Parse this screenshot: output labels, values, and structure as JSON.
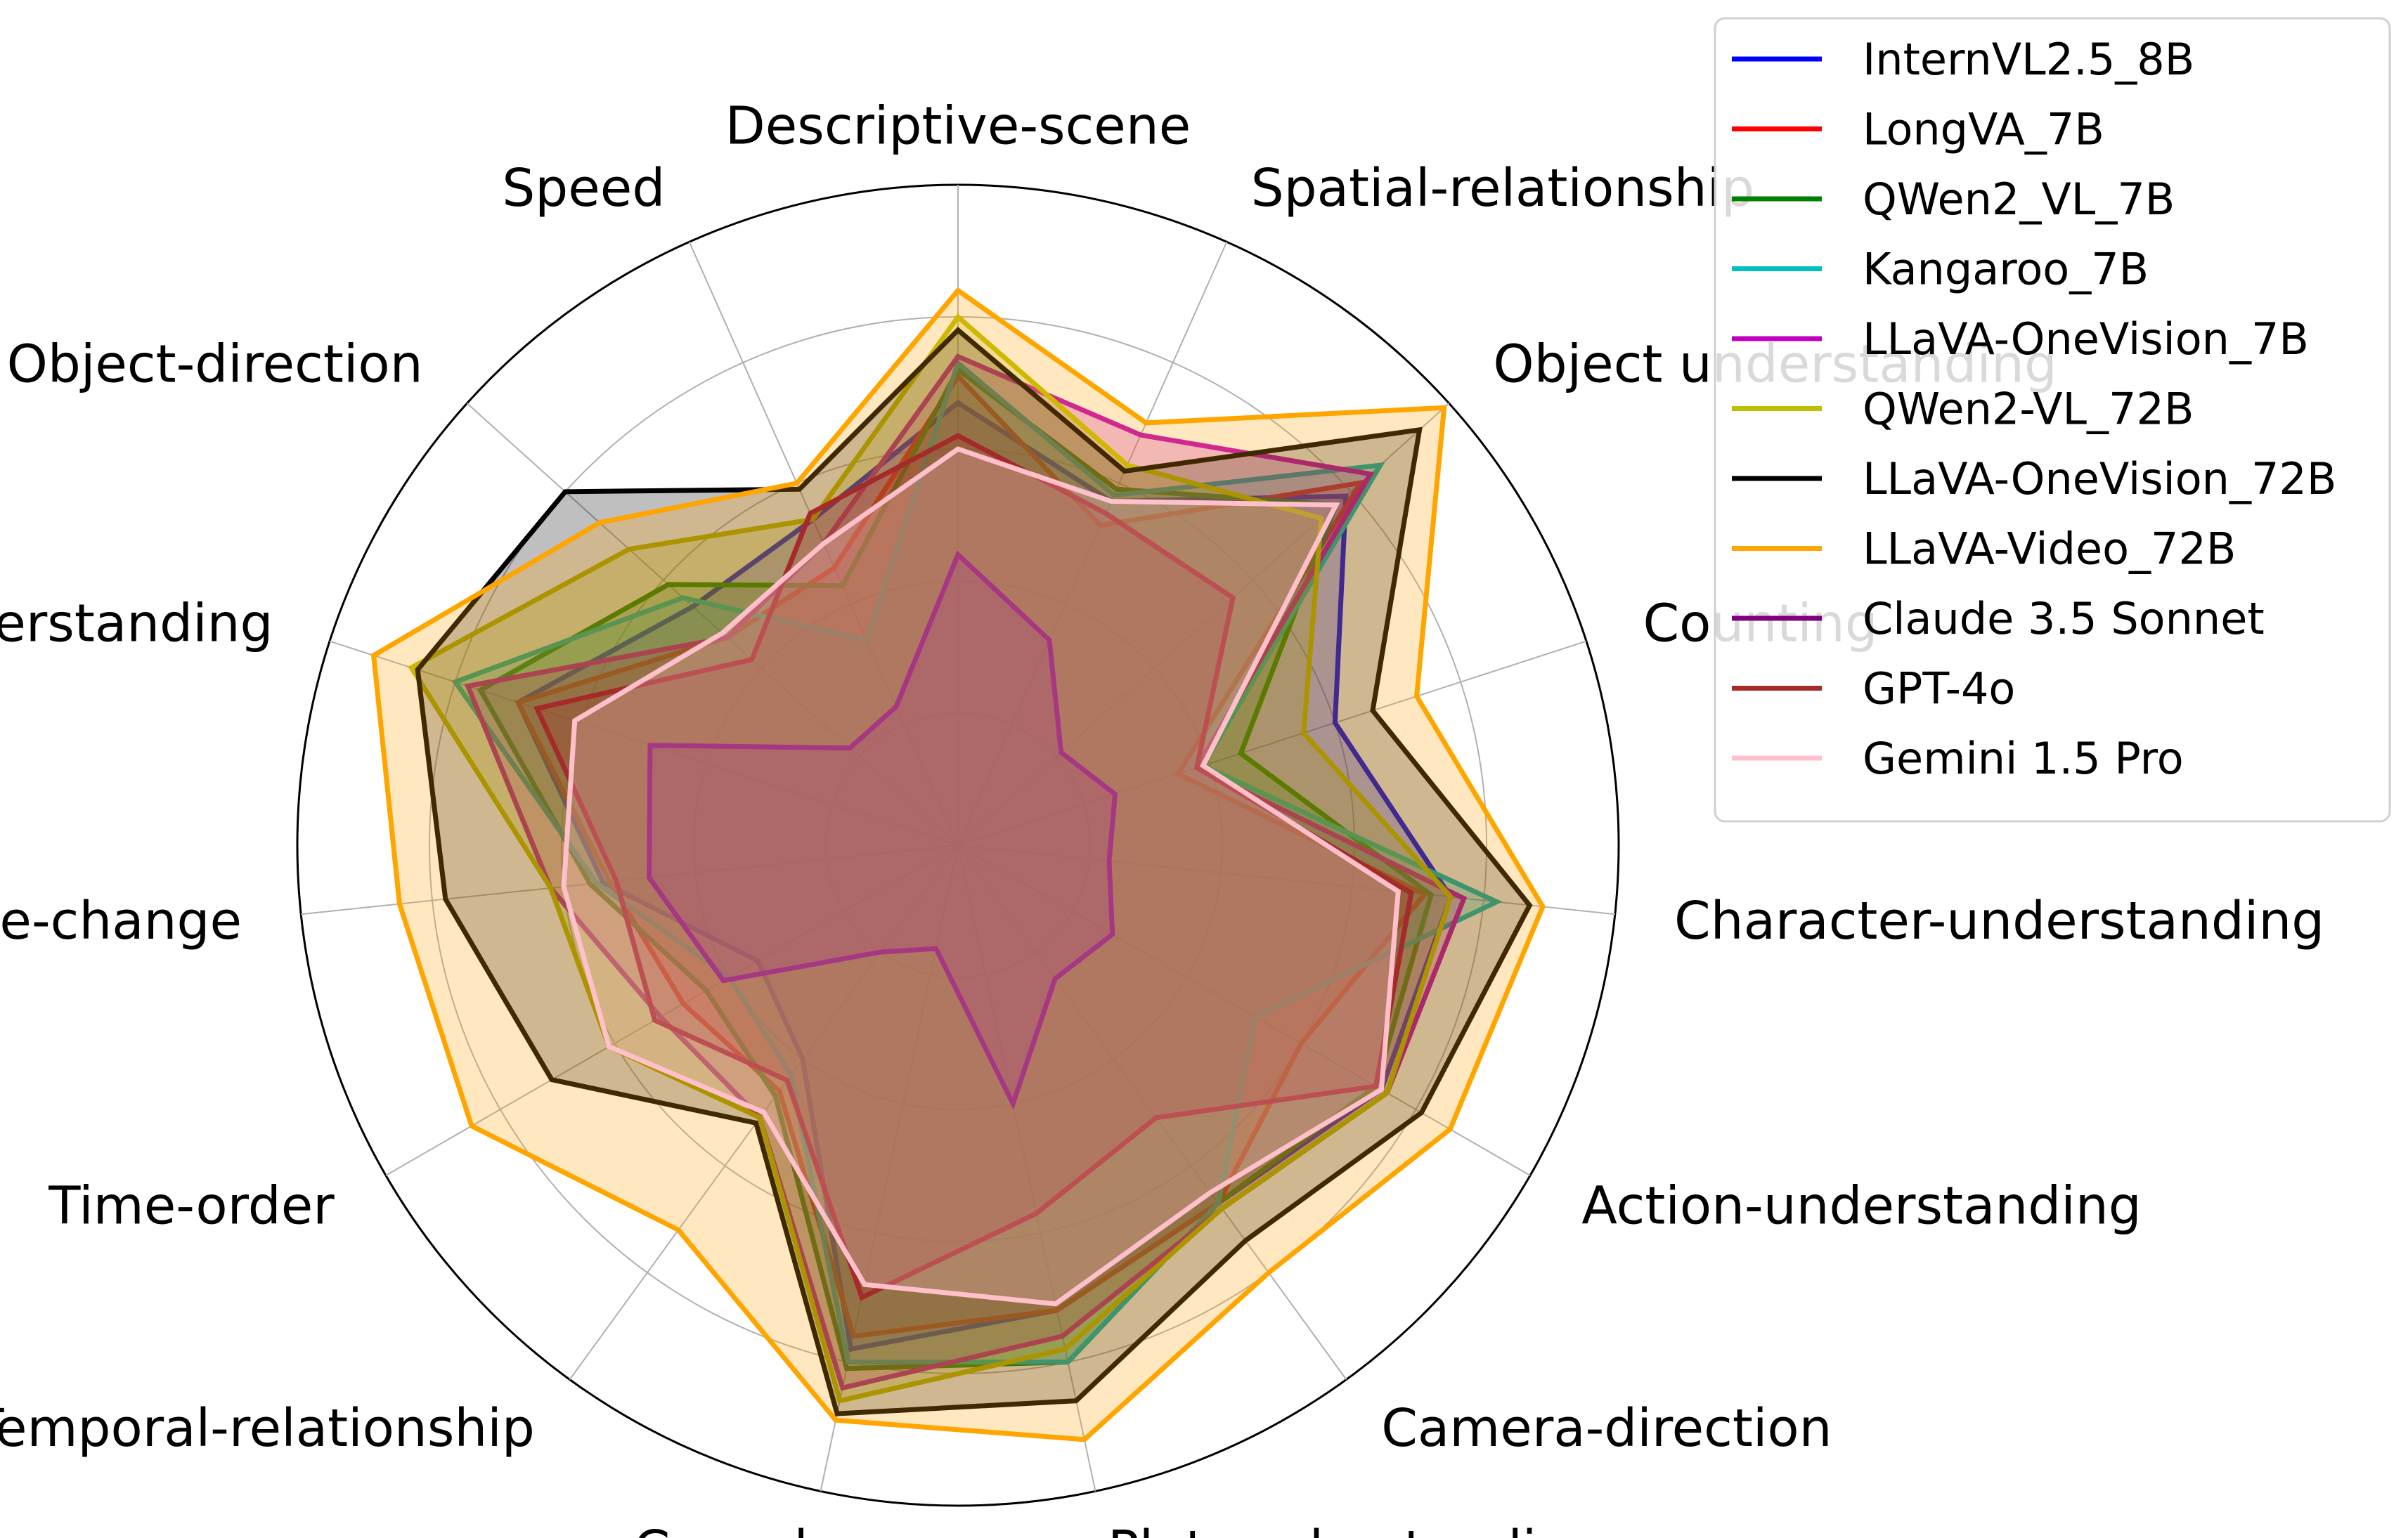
{
  "chart_data": {
    "type": "radar",
    "title": "",
    "axes": [
      "Descriptive-scene",
      "Spatial-relationship",
      "Object understanding",
      "Counting",
      "Character-understanding",
      "Action-understanding",
      "Camera-direction",
      "Plot-understanding",
      "Causal",
      "Temporal-relationship",
      "Time-order",
      "Attribute-change",
      "Scene-understanding",
      "Object-direction",
      "Speed"
    ],
    "rlim": [
      0,
      1
    ],
    "grid": true,
    "legend_position": "top-right",
    "series": [
      {
        "name": "InternVL2.5_8B",
        "color": "#0000ff",
        "values": [
          0.67,
          0.57,
          0.79,
          0.6,
          0.75,
          0.74,
          0.67,
          0.72,
          0.78,
          0.4,
          0.35,
          0.54,
          0.7,
          0.54,
          0.54
        ]
      },
      {
        "name": "LongVA_7B",
        "color": "#ff0000",
        "values": [
          0.71,
          0.53,
          0.82,
          0.35,
          0.71,
          0.6,
          0.67,
          0.72,
          0.76,
          0.46,
          0.48,
          0.53,
          0.7,
          0.47,
          0.46
        ]
      },
      {
        "name": "QWen2_VL_7B",
        "color": "#008000",
        "values": [
          0.72,
          0.59,
          0.77,
          0.45,
          0.72,
          0.73,
          0.67,
          0.8,
          0.81,
          0.47,
          0.44,
          0.56,
          0.76,
          0.59,
          0.43
        ]
      },
      {
        "name": "Kangaroo_7B",
        "color": "#00bfbf",
        "values": [
          0.73,
          0.58,
          0.86,
          0.39,
          0.82,
          0.52,
          0.67,
          0.8,
          0.8,
          0.43,
          0.4,
          0.55,
          0.8,
          0.56,
          0.34
        ]
      },
      {
        "name": "LLaVA-OneVision_7B",
        "color": "#bf00bf",
        "values": [
          0.74,
          0.68,
          0.84,
          0.38,
          0.77,
          0.75,
          0.68,
          0.76,
          0.84,
          0.51,
          0.52,
          0.62,
          0.78,
          0.47,
          0.5
        ]
      },
      {
        "name": "QWen2-VL_72B",
        "color": "#bfbf00",
        "values": [
          0.8,
          0.63,
          0.74,
          0.55,
          0.75,
          0.75,
          0.68,
          0.78,
          0.86,
          0.51,
          0.61,
          0.62,
          0.87,
          0.67,
          0.54
        ]
      },
      {
        "name": "LLaVA-OneVision_72B",
        "color": "#000000",
        "values": [
          0.78,
          0.62,
          0.94,
          0.66,
          0.87,
          0.81,
          0.74,
          0.86,
          0.88,
          0.52,
          0.71,
          0.78,
          0.86,
          0.8,
          0.59
        ]
      },
      {
        "name": "LLaVA-Video_72B",
        "color": "#ffa500",
        "values": [
          0.84,
          0.7,
          0.99,
          0.73,
          0.89,
          0.86,
          0.8,
          0.92,
          0.89,
          0.72,
          0.85,
          0.85,
          0.93,
          0.73,
          0.6
        ]
      },
      {
        "name": "Claude 3.5 Sonnet",
        "color": "#800080",
        "values": [
          0.44,
          0.34,
          0.21,
          0.25,
          0.23,
          0.27,
          0.25,
          0.4,
          0.16,
          0.2,
          0.41,
          0.47,
          0.49,
          0.22,
          0.23
        ]
      },
      {
        "name": "GPT-4o",
        "color": "#a52a2a",
        "values": [
          0.62,
          0.55,
          0.56,
          0.38,
          0.69,
          0.73,
          0.51,
          0.57,
          0.7,
          0.44,
          0.53,
          0.52,
          0.67,
          0.42,
          0.55
        ]
      },
      {
        "name": "Gemini 1.5 Pro",
        "color": "#ffc0cb",
        "values": [
          0.6,
          0.57,
          0.77,
          0.39,
          0.67,
          0.74,
          0.65,
          0.71,
          0.68,
          0.5,
          0.61,
          0.6,
          0.61,
          0.48,
          0.5
        ]
      }
    ]
  }
}
